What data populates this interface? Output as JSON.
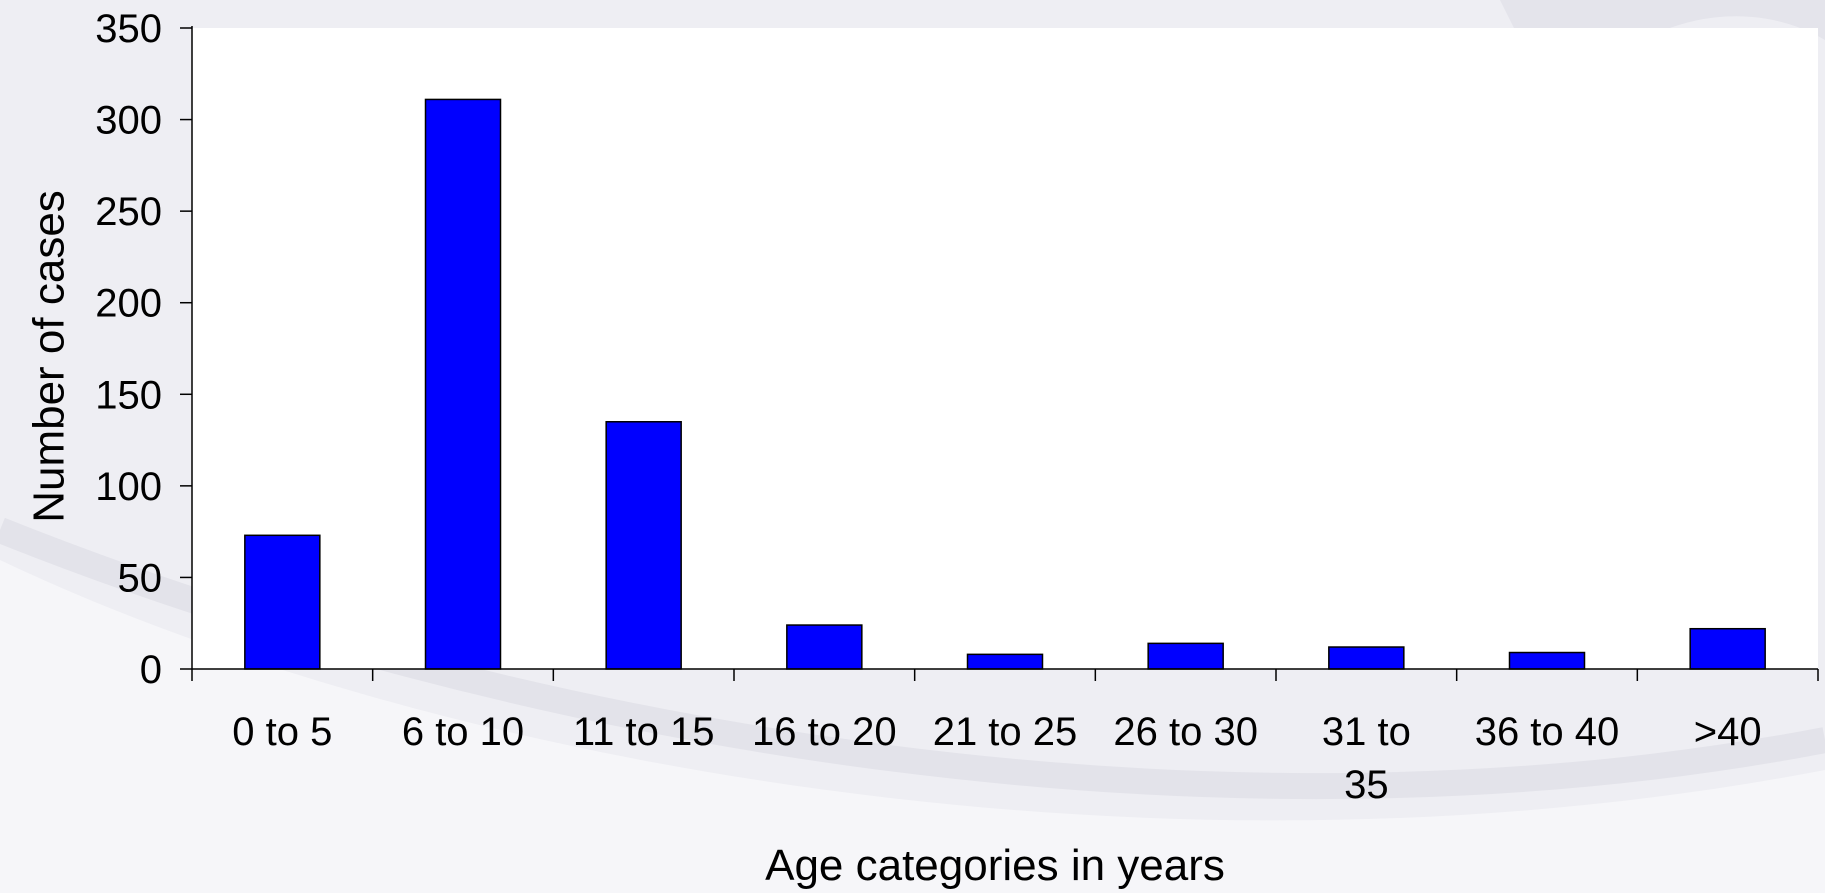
{
  "chart_data": {
    "type": "bar",
    "categories": [
      "0 to 5",
      "6 to 10",
      "11 to 15",
      "16 to 20",
      "21 to 25",
      "26 to 30",
      "31  to 35",
      "36 to 40",
      ">40"
    ],
    "category_lines": [
      [
        "0 to 5"
      ],
      [
        "6 to 10"
      ],
      [
        "11 to 15"
      ],
      [
        "16 to 20"
      ],
      [
        "21 to 25"
      ],
      [
        "26 to 30"
      ],
      [
        "31  to",
        "35"
      ],
      [
        "36 to 40"
      ],
      [
        ">40"
      ]
    ],
    "values": [
      73,
      311,
      135,
      24,
      8,
      14,
      12,
      9,
      22
    ],
    "xlabel": "Age categories in years",
    "ylabel": "Number of cases",
    "ylim": [
      0,
      350
    ],
    "yticks": [
      0,
      50,
      100,
      150,
      200,
      250,
      300,
      350
    ],
    "ytick_labels": [
      "0",
      "50",
      "100",
      "150",
      "200",
      "250",
      "300",
      "350"
    ],
    "grid": false,
    "legend": "none",
    "colors": {
      "bar_fill": "#0000ff",
      "bar_stroke": "#000000",
      "plot_background": "#ffffff",
      "axis": "#000000"
    }
  }
}
